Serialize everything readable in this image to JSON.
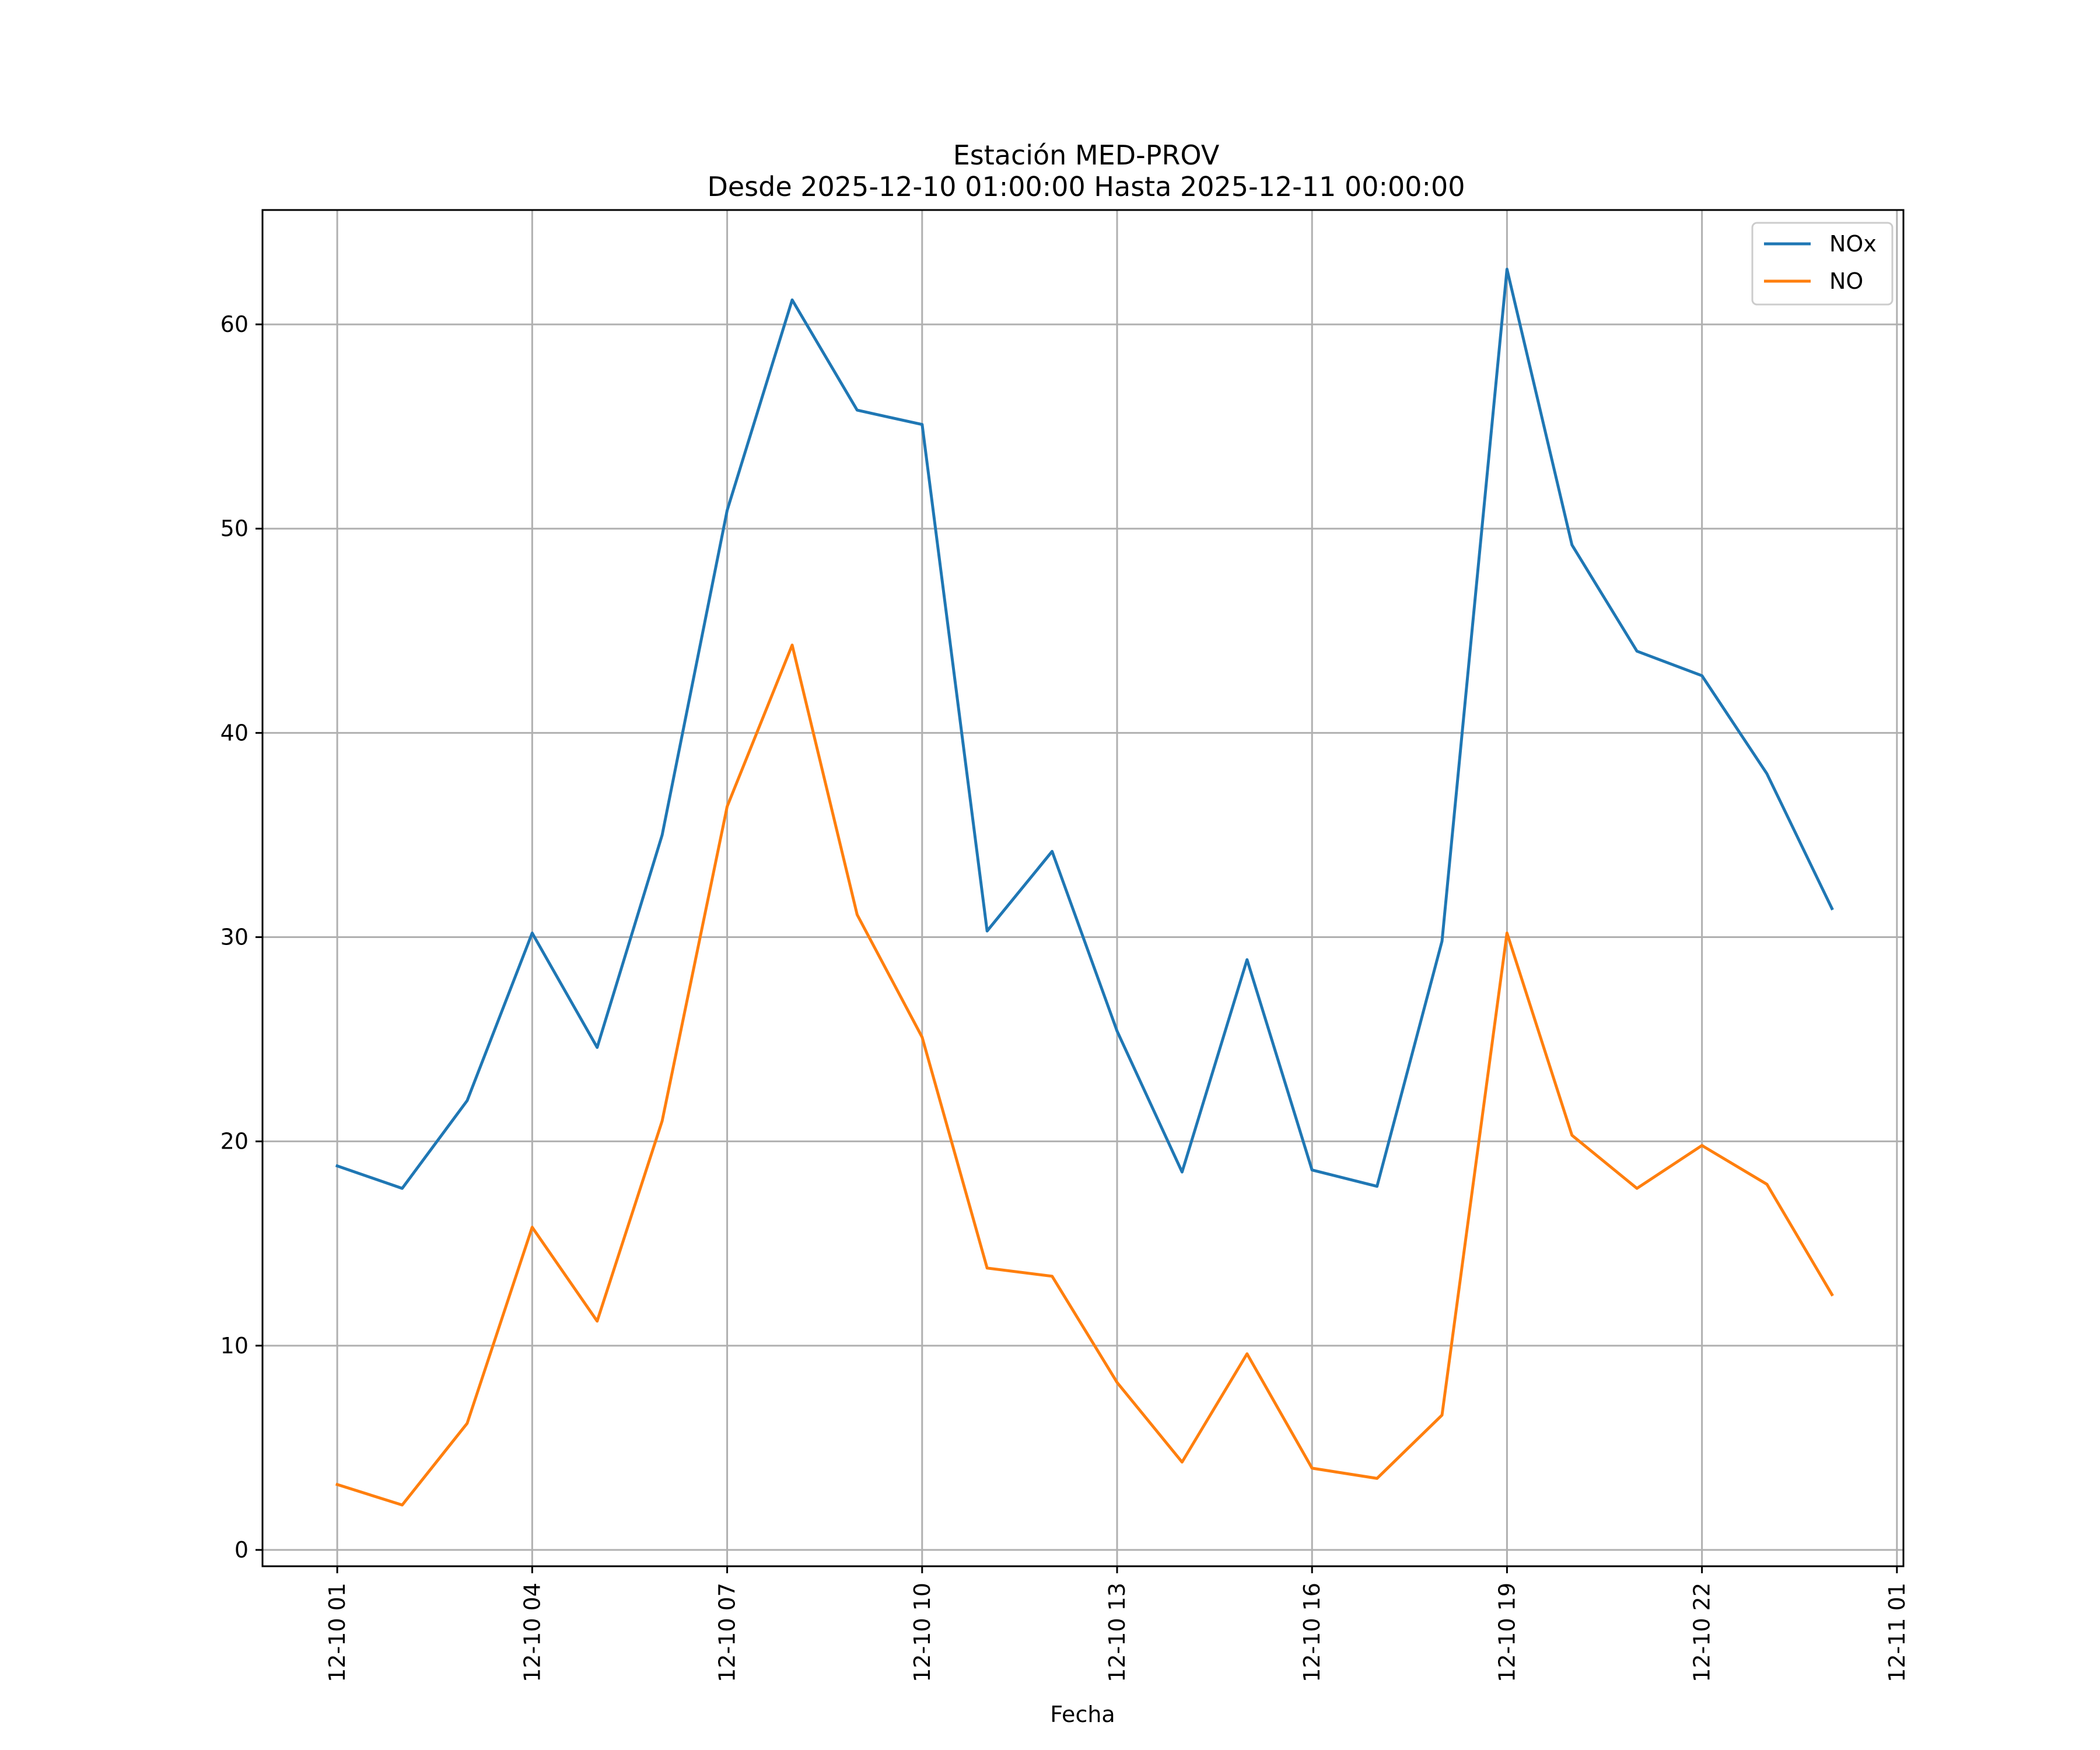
{
  "chart_data": {
    "type": "line",
    "title": "Estación MED-PROV",
    "subtitle": "Desde 2025-12-10 01:00:00 Hasta 2025-12-11 00:00:00",
    "xlabel": "Fecha",
    "ylabel": "",
    "x": [
      "12-10 01",
      "12-10 02",
      "12-10 03",
      "12-10 04",
      "12-10 05",
      "12-10 06",
      "12-10 07",
      "12-10 08",
      "12-10 09",
      "12-10 10",
      "12-10 11",
      "12-10 12",
      "12-10 13",
      "12-10 14",
      "12-10 15",
      "12-10 16",
      "12-10 17",
      "12-10 18",
      "12-10 19",
      "12-10 20",
      "12-10 21",
      "12-10 22",
      "12-10 23",
      "12-11 00"
    ],
    "x_hours": [
      1,
      2,
      3,
      4,
      5,
      6,
      7,
      8,
      9,
      10,
      11,
      12,
      13,
      14,
      15,
      16,
      17,
      18,
      19,
      20,
      21,
      22,
      23,
      24
    ],
    "xlim_hours": [
      -0.15,
      25.1
    ],
    "x_ticks": [
      {
        "hour": 1,
        "label": "12-10 01"
      },
      {
        "hour": 4,
        "label": "12-10 04"
      },
      {
        "hour": 7,
        "label": "12-10 07"
      },
      {
        "hour": 10,
        "label": "12-10 10"
      },
      {
        "hour": 13,
        "label": "12-10 13"
      },
      {
        "hour": 16,
        "label": "12-10 16"
      },
      {
        "hour": 19,
        "label": "12-10 19"
      },
      {
        "hour": 22,
        "label": "12-10 22"
      },
      {
        "hour": 25,
        "label": "12-11 01"
      }
    ],
    "ylim": [
      -0.8,
      65.6
    ],
    "y_ticks": [
      0,
      10,
      20,
      30,
      40,
      50,
      60
    ],
    "grid": true,
    "legend_position": "top-right",
    "series": [
      {
        "name": "NOx",
        "color": "#1f77b4",
        "values": [
          18.8,
          17.7,
          22.0,
          30.2,
          24.6,
          35.0,
          50.9,
          61.2,
          55.8,
          55.1,
          30.3,
          34.2,
          25.4,
          18.5,
          28.9,
          18.6,
          17.8,
          29.8,
          62.7,
          49.2,
          44.0,
          42.8,
          38.0,
          31.4
        ]
      },
      {
        "name": "NO",
        "color": "#ff7f0e",
        "values": [
          3.2,
          2.2,
          6.2,
          15.8,
          11.2,
          21.0,
          36.4,
          44.3,
          31.1,
          25.1,
          13.8,
          13.4,
          8.2,
          4.3,
          9.6,
          4.0,
          3.5,
          6.6,
          30.2,
          20.3,
          17.7,
          19.8,
          17.9,
          12.5
        ]
      }
    ]
  }
}
